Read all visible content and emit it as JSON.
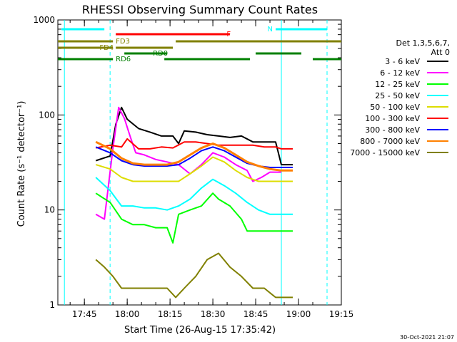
{
  "chart_data": {
    "type": "line",
    "title": "RHESSI Observing Summary Count Rates",
    "xlabel": "Start Time (26-Aug-15 17:35:42)",
    "ylabel": "Count Rate (s⁻¹ detector⁻¹)",
    "footer": "30-Oct-2021 21:07",
    "y_scale": "log",
    "ylim": [
      1,
      1000
    ],
    "xlim": [
      "17:35:42",
      "19:15:00"
    ],
    "x_ticks": [
      "17:45",
      "18:00",
      "18:15",
      "18:30",
      "18:45",
      "19:00",
      "19:15"
    ],
    "y_ticks": [
      "1",
      "10",
      "100",
      "1000"
    ],
    "legend": {
      "placement": "right",
      "header": [
        "Det 1,3,5,6,7,",
        "Att 0"
      ],
      "entries": [
        {
          "label": "3 - 6 keV",
          "color": "#000000"
        },
        {
          "label": "6 - 12 keV",
          "color": "#ff00ff"
        },
        {
          "label": "12 - 25 keV",
          "color": "#00ff00"
        },
        {
          "label": "25 - 50 keV",
          "color": "#00ffff"
        },
        {
          "label": "50 - 100 keV",
          "color": "#dddd00"
        },
        {
          "label": "100 - 300 keV",
          "color": "#ff0000"
        },
        {
          "label": "300 - 800 keV",
          "color": "#0000ff"
        },
        {
          "label": "800 - 7000 keV",
          "color": "#ff8000"
        },
        {
          "label": "7000 - 15000 keV",
          "color": "#808000"
        }
      ]
    },
    "flag_bars": [
      {
        "label": "N",
        "color": "#00ffff",
        "segments": [
          [
            "17:37",
            "17:52"
          ],
          [
            "18:52",
            "19:10"
          ]
        ]
      },
      {
        "label": "F",
        "color": "#ff0000",
        "segments": [
          [
            "17:56",
            "18:36"
          ]
        ]
      },
      {
        "label": "FD3",
        "color": "#808000",
        "segments": [
          [
            "17:35:42",
            "17:55"
          ],
          [
            "18:17",
            "19:15"
          ]
        ]
      },
      {
        "label": "FD4",
        "color": "#808000",
        "segments": [
          [
            "17:35:42",
            "17:55"
          ],
          [
            "17:56",
            "18:16"
          ]
        ]
      },
      {
        "label": "RD0",
        "color": "#008000",
        "segments": [
          [
            "17:59",
            "18:14"
          ],
          [
            "18:45",
            "19:01"
          ]
        ]
      },
      {
        "label": "RD6",
        "color": "#008000",
        "segments": [
          [
            "17:35:42",
            "17:55"
          ],
          [
            "18:13",
            "18:43"
          ],
          [
            "19:05",
            "19:15"
          ]
        ]
      }
    ],
    "vertical_markers": [
      {
        "time": "17:38",
        "color": "#00ffff",
        "style": "solid"
      },
      {
        "time": "17:54",
        "color": "#00ffff",
        "style": "dashed"
      },
      {
        "time": "18:54",
        "color": "#00ffff",
        "style": "solid"
      },
      {
        "time": "19:10",
        "color": "#00ffff",
        "style": "dashed"
      }
    ],
    "series": [
      {
        "name": "3 - 6 keV",
        "color": "#000000",
        "x": [
          "17:49",
          "17:54",
          "17:56",
          "17:58",
          "18:00",
          "18:04",
          "18:08",
          "18:12",
          "18:16",
          "18:18",
          "18:20",
          "18:24",
          "18:28",
          "18:32",
          "18:36",
          "18:40",
          "18:44",
          "18:48",
          "18:52",
          "18:54",
          "18:58"
        ],
        "y": [
          33,
          37,
          80,
          120,
          90,
          72,
          66,
          60,
          60,
          50,
          68,
          66,
          62,
          60,
          58,
          60,
          52,
          52,
          52,
          30,
          30
        ]
      },
      {
        "name": "6 - 12 keV",
        "color": "#ff00ff",
        "x": [
          "17:49",
          "17:52",
          "17:55",
          "17:57",
          "17:59",
          "18:01",
          "18:03",
          "18:06",
          "18:10",
          "18:14",
          "18:18",
          "18:22",
          "18:26",
          "18:30",
          "18:34",
          "18:38",
          "18:42",
          "18:44",
          "18:47",
          "18:50",
          "18:54"
        ],
        "y": [
          9,
          8,
          45,
          120,
          92,
          60,
          40,
          38,
          34,
          32,
          30,
          24,
          30,
          40,
          36,
          30,
          26,
          20,
          22,
          25,
          25
        ]
      },
      {
        "name": "12 - 25 keV",
        "color": "#00ff00",
        "x": [
          "17:49",
          "17:54",
          "17:58",
          "18:02",
          "18:06",
          "18:10",
          "18:14",
          "18:16",
          "18:18",
          "18:22",
          "18:26",
          "18:30",
          "18:32",
          "18:36",
          "18:40",
          "18:42",
          "18:46",
          "18:50",
          "18:54",
          "18:58"
        ],
        "y": [
          15,
          12,
          8,
          7,
          7,
          6.5,
          6.5,
          4.5,
          9,
          10,
          11,
          15,
          13,
          11,
          8,
          6,
          6,
          6,
          6,
          6
        ]
      },
      {
        "name": "25 - 50 keV",
        "color": "#00ffff",
        "x": [
          "17:49",
          "17:54",
          "17:58",
          "18:02",
          "18:06",
          "18:10",
          "18:14",
          "18:18",
          "18:22",
          "18:26",
          "18:30",
          "18:34",
          "18:38",
          "18:42",
          "18:46",
          "18:50",
          "18:54",
          "18:58"
        ],
        "y": [
          22,
          16,
          11,
          11,
          10.5,
          10.5,
          10,
          11,
          13,
          17,
          21,
          18,
          15,
          12,
          10,
          9,
          9,
          9
        ]
      },
      {
        "name": "50 - 100 keV",
        "color": "#dddd00",
        "x": [
          "17:49",
          "17:54",
          "17:58",
          "18:02",
          "18:06",
          "18:10",
          "18:14",
          "18:18",
          "18:22",
          "18:26",
          "18:30",
          "18:34",
          "18:38",
          "18:42",
          "18:46",
          "18:50",
          "18:54",
          "18:58"
        ],
        "y": [
          30,
          27,
          22,
          20,
          20,
          20,
          20,
          20,
          24,
          29,
          36,
          32,
          26,
          22,
          20,
          20,
          20,
          20
        ]
      },
      {
        "name": "100 - 300 keV",
        "color": "#ff0000",
        "x": [
          "17:49",
          "17:54",
          "17:58",
          "18:00",
          "18:04",
          "18:08",
          "18:12",
          "18:16",
          "18:20",
          "18:24",
          "18:28",
          "18:32",
          "18:36",
          "18:40",
          "18:44",
          "18:48",
          "18:52",
          "18:54",
          "18:58"
        ],
        "y": [
          45,
          48,
          46,
          56,
          44,
          44,
          46,
          45,
          52,
          52,
          50,
          48,
          48,
          48,
          48,
          46,
          46,
          44,
          44
        ]
      },
      {
        "name": "300 - 800 keV",
        "color": "#0000ff",
        "x": [
          "17:49",
          "17:54",
          "17:58",
          "18:02",
          "18:06",
          "18:10",
          "18:14",
          "18:18",
          "18:22",
          "18:26",
          "18:30",
          "18:34",
          "18:38",
          "18:42",
          "18:46",
          "18:50",
          "18:54",
          "18:58"
        ],
        "y": [
          46,
          40,
          33,
          30,
          29,
          29,
          29,
          30,
          35,
          42,
          46,
          42,
          36,
          31,
          29,
          28,
          28,
          28
        ]
      },
      {
        "name": "800 - 7000 keV",
        "color": "#ff8000",
        "x": [
          "17:49",
          "17:54",
          "17:58",
          "18:02",
          "18:06",
          "18:10",
          "18:14",
          "18:18",
          "18:22",
          "18:26",
          "18:30",
          "18:34",
          "18:38",
          "18:42",
          "18:46",
          "18:50",
          "18:54",
          "18:58"
        ],
        "y": [
          52,
          44,
          35,
          31,
          30,
          30,
          30,
          32,
          38,
          45,
          50,
          45,
          38,
          32,
          29,
          27,
          26,
          26
        ]
      },
      {
        "name": "7000 - 15000 keV",
        "color": "#808000",
        "x": [
          "17:49",
          "17:52",
          "17:55",
          "17:58",
          "18:02",
          "18:06",
          "18:10",
          "18:14",
          "18:17",
          "18:20",
          "18:24",
          "18:28",
          "18:32",
          "18:36",
          "18:40",
          "18:44",
          "18:48",
          "18:52",
          "18:55",
          "18:58"
        ],
        "y": [
          3,
          2.5,
          2,
          1.5,
          1.5,
          1.5,
          1.5,
          1.5,
          1.2,
          1.5,
          2,
          3,
          3.5,
          2.5,
          2,
          1.5,
          1.5,
          1.2,
          1.2,
          1.2
        ]
      }
    ]
  }
}
